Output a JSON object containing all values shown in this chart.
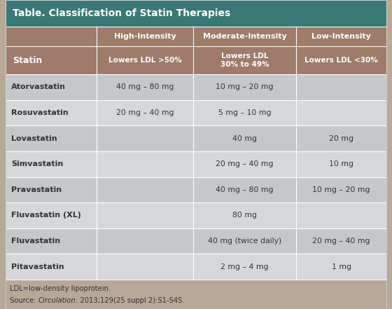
{
  "title": "Table. Classification of Statin Therapies",
  "title_bg": "#3a7878",
  "title_color": "#ffffff",
  "header_bg": "#9e7b6a",
  "header_text_color": "#ffffff",
  "col_header_labels": [
    "High-Intensity",
    "Moderate-Intensity",
    "Low-Intensity"
  ],
  "col_sub_labels": [
    "Lowers LDL >50%",
    "Lowers LDL\n30% to 49%",
    "Lowers LDL <30%"
  ],
  "row_label_col": "Statin",
  "row_bg_odd": "#c4c8cb",
  "row_bg_even": "#d4d8db",
  "row_name_color": "#333333",
  "data_text_color": "#333333",
  "rows": [
    [
      "Atorvastatin",
      "40 mg – 80 mg",
      "10 mg – 20 mg",
      ""
    ],
    [
      "Rosuvastatin",
      "20 mg – 40 mg",
      "5 mg – 10 mg",
      ""
    ],
    [
      "Lovastatin",
      "",
      "40 mg",
      "20 mg"
    ],
    [
      "Simvastatin",
      "",
      "20 mg – 40 mg",
      "10 mg"
    ],
    [
      "Pravastatin",
      "",
      "40 mg – 80 mg",
      "10 mg – 20 mg"
    ],
    [
      "Fluvastatin (XL)",
      "",
      "80 mg",
      ""
    ],
    [
      "Fluvastatin",
      "",
      "40 mg (twice daily)",
      "20 mg – 40 mg"
    ],
    [
      "Pitavastatin",
      "",
      "2 mg – 4 mg",
      "1 mg"
    ]
  ],
  "footer_bg": "#b8a898",
  "footer_text_color": "#333333",
  "footer_line1": "LDL=low-density lipoprotein.",
  "footer_pre": "Source: ",
  "footer_italic": "Circulation",
  "footer_post": ". 2013;129(25 suppl 2):S1-S45.",
  "line_color": "#ffffff",
  "outer_bg": "#b8a898"
}
